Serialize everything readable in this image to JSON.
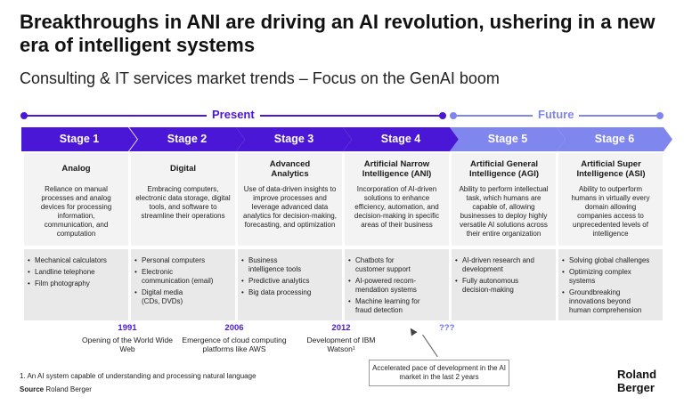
{
  "header": {
    "title": "Breakthroughs in ANI are driving an AI revolution, ushering in a new era of intelligent systems",
    "subtitle": "Consulting & IT services market trends – Focus on the GenAI boom"
  },
  "timeline": {
    "present_label": "Present",
    "future_label": "Future",
    "present_color": "#4b17d6",
    "future_color": "#7f86ee"
  },
  "stages": [
    {
      "label": "Stage 1",
      "name": "Analog",
      "description": "Reliance on manual processes and analog devices for processing information, communication, and computation",
      "items": [
        "Mechanical calculators",
        "Landline telephone",
        "Film photography"
      ]
    },
    {
      "label": "Stage 2",
      "name": "Digital",
      "description": "Embracing computers, electronic data storage, digital tools, and software to streamline their operations",
      "items": [
        "Personal computers",
        "Electronic communication (email)",
        "Digital media (CDs, DVDs)"
      ]
    },
    {
      "label": "Stage 3",
      "name": "Advanced Analytics",
      "description": "Use of data-driven insights to improve processes and leverage advanced data analytics for decision-making, forecasting, and optimization",
      "items": [
        "Business intelligence tools",
        "Predictive analytics",
        "Big data processing"
      ]
    },
    {
      "label": "Stage 4",
      "name": "Artificial Narrow Intelligence (ANI)",
      "description": "Incorporation of AI-driven solutions to enhance efficiency, automation, and decision-making in specific areas of their business",
      "items": [
        "Chatbots for customer support",
        "AI-powered recom-mendation systems",
        "Machine learning for fraud detection"
      ]
    },
    {
      "label": "Stage 5",
      "name": "Artificial General Intelligence (AGI)",
      "description": "Ability to perform intellectual task, which humans are capable of, allowing businesses to deploy highly versatile AI solutions across their entire organization",
      "items": [
        "AI-driven research and development",
        "Fully autonomous decision-making"
      ]
    },
    {
      "label": "Stage 6",
      "name": "Artificial Super Intelligence (ASI)",
      "description": "Ability to outperform humans in virtually every domain allowing companies access to unprecedented levels of intelligence",
      "items": [
        "Solving global challenges",
        "Optimizing complex systems",
        "Groundbreaking innovations beyond human comprehension"
      ]
    }
  ],
  "milestones": [
    {
      "year": "1991",
      "text": "Opening of the World Wide Web"
    },
    {
      "year": "2006",
      "text": "Emergence of cloud computing platforms like AWS"
    },
    {
      "year": "2012",
      "text": "Development of IBM Watson¹"
    }
  ],
  "future_milestone": "???",
  "callout": "Accelerated pace of development in the AI market in the last 2 years",
  "footnote": "1. An AI system capable of understanding and processing natural language",
  "source": {
    "label": "Source",
    "text": "Roland Berger"
  },
  "logo": {
    "line1": "Roland",
    "line2": "Berger"
  }
}
